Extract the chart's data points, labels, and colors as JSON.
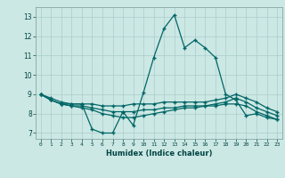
{
  "title": "",
  "xlabel": "Humidex (Indice chaleur)",
  "ylabel": "",
  "background_color": "#cce8e4",
  "grid_color": "#aacccc",
  "line_color": "#006666",
  "xlim": [
    -0.5,
    23.5
  ],
  "ylim": [
    6.7,
    13.5
  ],
  "yticks": [
    7,
    8,
    9,
    10,
    11,
    12,
    13
  ],
  "xticks": [
    0,
    1,
    2,
    3,
    4,
    5,
    6,
    7,
    8,
    9,
    10,
    11,
    12,
    13,
    14,
    15,
    16,
    17,
    18,
    19,
    20,
    21,
    22,
    23
  ],
  "series": [
    {
      "x": [
        0,
        1,
        2,
        3,
        4,
        5,
        6,
        7,
        8,
        9,
        10,
        11,
        12,
        13,
        14,
        15,
        16,
        17,
        18,
        19,
        20,
        21,
        22,
        23
      ],
      "y": [
        9.0,
        8.7,
        8.5,
        8.5,
        8.5,
        7.2,
        7.0,
        7.0,
        8.1,
        7.4,
        9.1,
        10.9,
        12.4,
        13.1,
        11.4,
        11.8,
        11.4,
        10.9,
        9.0,
        8.7,
        7.9,
        8.0,
        7.8,
        7.7
      ]
    },
    {
      "x": [
        0,
        1,
        2,
        3,
        4,
        5,
        6,
        7,
        8,
        9,
        10,
        11,
        12,
        13,
        14,
        15,
        16,
        17,
        18,
        19,
        20,
        21,
        22,
        23
      ],
      "y": [
        9.0,
        8.8,
        8.6,
        8.5,
        8.5,
        8.5,
        8.4,
        8.4,
        8.4,
        8.5,
        8.5,
        8.5,
        8.6,
        8.6,
        8.6,
        8.6,
        8.6,
        8.7,
        8.8,
        9.0,
        8.8,
        8.6,
        8.3,
        8.1
      ]
    },
    {
      "x": [
        0,
        1,
        2,
        3,
        4,
        5,
        6,
        7,
        8,
        9,
        10,
        11,
        12,
        13,
        14,
        15,
        16,
        17,
        18,
        19,
        20,
        21,
        22,
        23
      ],
      "y": [
        9.0,
        8.7,
        8.5,
        8.4,
        8.4,
        8.3,
        8.2,
        8.1,
        8.1,
        8.1,
        8.2,
        8.2,
        8.3,
        8.3,
        8.4,
        8.4,
        8.4,
        8.5,
        8.6,
        8.8,
        8.6,
        8.3,
        8.1,
        7.9
      ]
    },
    {
      "x": [
        0,
        1,
        2,
        3,
        4,
        5,
        6,
        7,
        8,
        9,
        10,
        11,
        12,
        13,
        14,
        15,
        16,
        17,
        18,
        19,
        20,
        21,
        22,
        23
      ],
      "y": [
        9.0,
        8.7,
        8.5,
        8.4,
        8.3,
        8.2,
        8.0,
        7.9,
        7.8,
        7.8,
        7.9,
        8.0,
        8.1,
        8.2,
        8.3,
        8.3,
        8.4,
        8.4,
        8.5,
        8.5,
        8.4,
        8.1,
        7.9,
        7.7
      ]
    }
  ]
}
